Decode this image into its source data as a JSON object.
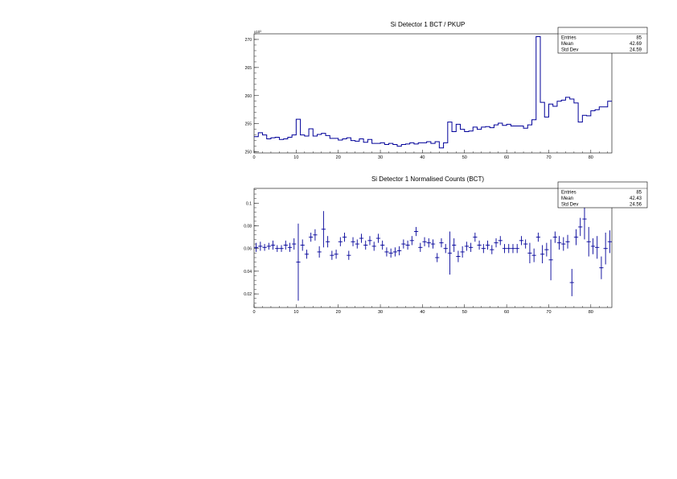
{
  "chart_data": [
    {
      "type": "line",
      "style": "step-histogram",
      "title": "Si Detector 1 BCT / PKUP",
      "xlabel": "",
      "ylabel": "",
      "xlim": [
        0,
        85
      ],
      "ylim": [
        249.8,
        271.0
      ],
      "y_exponent": "x10³",
      "xticks": [
        0,
        10,
        20,
        30,
        40,
        50,
        60,
        70,
        80
      ],
      "yticks": [
        250,
        255,
        260,
        265,
        270
      ],
      "line_color": "#000099",
      "stats": {
        "entries_label": "Entries",
        "entries": "85",
        "mean_label": "Mean",
        "mean": "42.69",
        "stddev_label": "Std Dev",
        "stddev": "24.59"
      },
      "bin_width": 1,
      "values": [
        252.7,
        253.4,
        253.0,
        252.3,
        252.5,
        252.6,
        252.2,
        252.3,
        252.6,
        253.0,
        255.8,
        253.0,
        252.8,
        254.1,
        252.8,
        253.1,
        253.3,
        252.9,
        252.4,
        252.4,
        252.1,
        252.3,
        252.5,
        252.0,
        251.9,
        252.3,
        251.7,
        252.2,
        251.5,
        251.5,
        251.6,
        251.3,
        251.5,
        251.3,
        251.0,
        251.3,
        251.4,
        251.6,
        251.4,
        251.6,
        251.6,
        251.8,
        251.5,
        251.8,
        250.7,
        251.6,
        255.3,
        253.6,
        254.9,
        254.0,
        253.6,
        253.7,
        254.4,
        254.0,
        254.4,
        254.5,
        254.3,
        254.8,
        255.1,
        254.7,
        254.9,
        254.6,
        254.6,
        254.6,
        254.2,
        254.8,
        255.7,
        270.5,
        258.8,
        256.2,
        258.5,
        258.1,
        259.0,
        259.2,
        259.7,
        259.4,
        258.7,
        255.3,
        256.5,
        256.4,
        257.3,
        257.5,
        258.0,
        258.0,
        259.0
      ]
    },
    {
      "type": "scatter",
      "style": "error-bars",
      "title": "Si Detector 1 Normalised Counts (BCT)",
      "xlabel": "",
      "ylabel": "",
      "xlim": [
        0,
        85
      ],
      "ylim": [
        0.008,
        0.113
      ],
      "xticks": [
        0,
        10,
        20,
        30,
        40,
        50,
        60,
        70,
        80
      ],
      "yticks": [
        0.02,
        0.04,
        0.06,
        0.08,
        0.1
      ],
      "ytick_labels": [
        "0.02",
        "0.04",
        "0.06",
        "0.08",
        "0.1"
      ],
      "marker_color": "#000099",
      "stats": {
        "entries_label": "Entries",
        "entries": "85",
        "mean_label": "Mean",
        "mean": "42.43",
        "stddev_label": "Std Dev",
        "stddev": "24.56"
      },
      "x": [
        0.5,
        1.5,
        2.5,
        3.5,
        4.5,
        5.5,
        6.5,
        7.5,
        8.5,
        9.5,
        10.5,
        11.5,
        12.5,
        13.5,
        14.5,
        15.5,
        16.5,
        17.5,
        18.5,
        19.5,
        20.5,
        21.5,
        22.5,
        23.5,
        24.5,
        25.5,
        26.5,
        27.5,
        28.5,
        29.5,
        30.5,
        31.5,
        32.5,
        33.5,
        34.5,
        35.5,
        36.5,
        37.5,
        38.5,
        39.5,
        40.5,
        41.5,
        42.5,
        43.5,
        44.5,
        45.5,
        46.5,
        47.5,
        48.5,
        49.5,
        50.5,
        51.5,
        52.5,
        53.5,
        54.5,
        55.5,
        56.5,
        57.5,
        58.5,
        59.5,
        60.5,
        61.5,
        62.5,
        63.5,
        64.5,
        65.5,
        66.5,
        67.5,
        68.5,
        69.5,
        70.5,
        71.5,
        72.5,
        73.5,
        74.5,
        75.5,
        76.5,
        77.5,
        78.5,
        79.5,
        80.5,
        81.5,
        82.5,
        83.5,
        84.5
      ],
      "y": [
        0.061,
        0.062,
        0.061,
        0.062,
        0.063,
        0.06,
        0.06,
        0.063,
        0.061,
        0.064,
        0.048,
        0.063,
        0.055,
        0.07,
        0.072,
        0.057,
        0.077,
        0.066,
        0.054,
        0.055,
        0.066,
        0.07,
        0.054,
        0.066,
        0.064,
        0.069,
        0.063,
        0.067,
        0.062,
        0.069,
        0.063,
        0.057,
        0.056,
        0.057,
        0.058,
        0.064,
        0.063,
        0.067,
        0.075,
        0.061,
        0.066,
        0.065,
        0.064,
        0.052,
        0.065,
        0.06,
        0.056,
        0.063,
        0.053,
        0.057,
        0.062,
        0.061,
        0.07,
        0.063,
        0.06,
        0.063,
        0.059,
        0.065,
        0.067,
        0.06,
        0.06,
        0.06,
        0.06,
        0.067,
        0.064,
        0.056,
        0.054,
        0.07,
        0.055,
        0.059,
        0.05,
        0.07,
        0.065,
        0.064,
        0.066,
        0.03,
        0.07,
        0.079,
        0.086,
        0.066,
        0.062,
        0.061,
        0.043,
        0.06,
        0.066
      ],
      "yerr": [
        0.004,
        0.004,
        0.003,
        0.003,
        0.004,
        0.003,
        0.003,
        0.004,
        0.004,
        0.005,
        0.034,
        0.005,
        0.004,
        0.004,
        0.005,
        0.005,
        0.016,
        0.005,
        0.004,
        0.004,
        0.004,
        0.004,
        0.004,
        0.004,
        0.004,
        0.004,
        0.004,
        0.004,
        0.004,
        0.004,
        0.004,
        0.004,
        0.004,
        0.004,
        0.004,
        0.004,
        0.004,
        0.004,
        0.004,
        0.004,
        0.004,
        0.004,
        0.004,
        0.004,
        0.004,
        0.004,
        0.019,
        0.006,
        0.005,
        0.005,
        0.004,
        0.004,
        0.004,
        0.004,
        0.004,
        0.004,
        0.004,
        0.004,
        0.004,
        0.004,
        0.004,
        0.004,
        0.004,
        0.004,
        0.004,
        0.009,
        0.006,
        0.004,
        0.008,
        0.006,
        0.018,
        0.005,
        0.006,
        0.006,
        0.006,
        0.012,
        0.007,
        0.008,
        0.018,
        0.013,
        0.007,
        0.01,
        0.01,
        0.014,
        0.01
      ]
    }
  ]
}
